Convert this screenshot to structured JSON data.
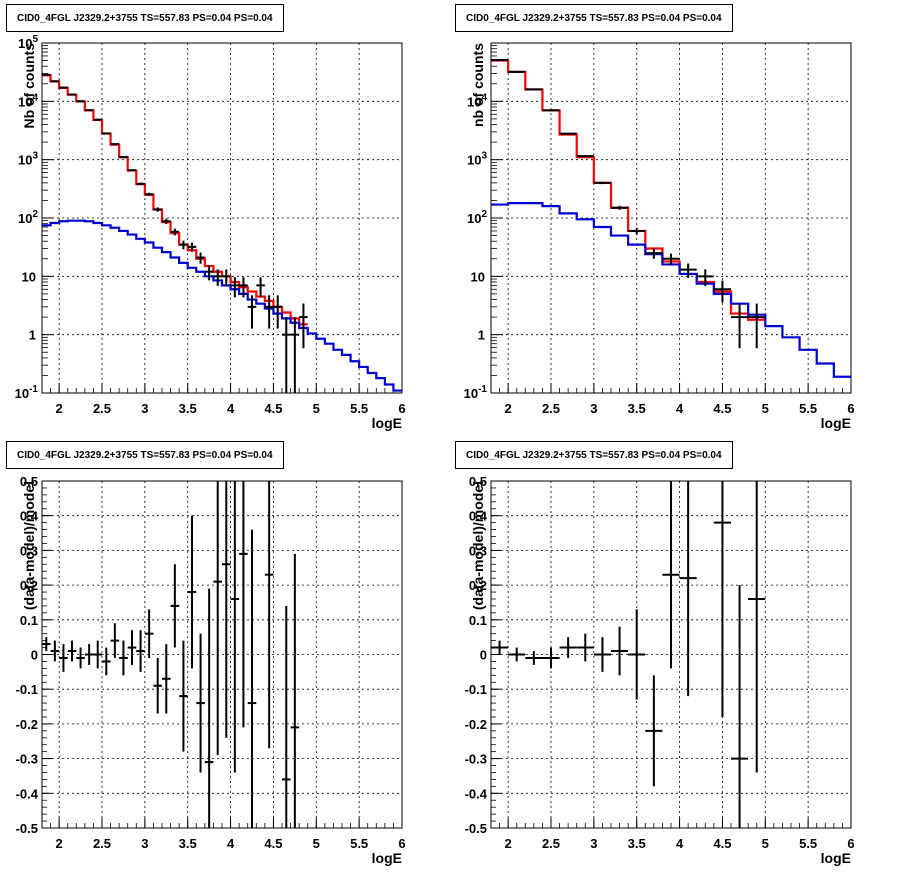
{
  "chart_data": [
    {
      "type": "histogram",
      "title": "CID0_4FGL J2329.2+3755 TS=557.83 PS=0.04 PS=0.04",
      "xlabel": "logE",
      "ylabel": "Nb of counts",
      "xlim": [
        1.8,
        6.0
      ],
      "ylim": [
        0.1,
        100000
      ],
      "yscale": "log",
      "grid": true,
      "x_ticks": [
        "2",
        "2.5",
        "3",
        "3.5",
        "4",
        "4.5",
        "5",
        "5.5",
        "6"
      ],
      "y_ticks": [
        "10^-1",
        "1",
        "10",
        "10^2",
        "10^3",
        "10^4",
        "10^5"
      ],
      "bin_width": 0.1,
      "series": [
        {
          "role": "model-total",
          "color": "#ff0000",
          "x": [
            1.8,
            1.9,
            2.0,
            2.1,
            2.2,
            2.3,
            2.4,
            2.5,
            2.6,
            2.7,
            2.8,
            2.9,
            3.0,
            3.1,
            3.2,
            3.3,
            3.4,
            3.5,
            3.6,
            3.7,
            3.8,
            3.9,
            4.0,
            4.1,
            4.2,
            4.3,
            4.4,
            4.5,
            4.6,
            4.7,
            4.8
          ],
          "values": [
            28000,
            22000,
            17000,
            13000,
            10000,
            7000,
            4800,
            2800,
            1800,
            1100,
            650,
            380,
            250,
            140,
            85,
            55,
            35,
            28,
            20,
            15,
            12,
            10,
            8,
            6.5,
            5.5,
            4.5,
            3.8,
            3.0,
            2.4,
            1.9,
            1.5
          ]
        },
        {
          "role": "background-model",
          "color": "#0000d0",
          "x": [
            1.8,
            1.9,
            2.0,
            2.1,
            2.2,
            2.3,
            2.4,
            2.5,
            2.6,
            2.7,
            2.8,
            2.9,
            3.0,
            3.1,
            3.2,
            3.3,
            3.4,
            3.5,
            3.6,
            3.7,
            3.8,
            3.9,
            4.0,
            4.1,
            4.2,
            4.3,
            4.4,
            4.5,
            4.6,
            4.7,
            4.8,
            4.9,
            5.0,
            5.1,
            5.2,
            5.3,
            5.4,
            5.5,
            5.6,
            5.7,
            5.8,
            5.9
          ],
          "values": [
            75,
            82,
            88,
            90,
            90,
            88,
            82,
            75,
            68,
            60,
            52,
            44,
            38,
            31,
            26,
            21,
            17,
            14,
            12,
            10,
            8.5,
            7,
            6,
            5,
            4,
            3.4,
            2.8,
            2.3,
            1.9,
            1.6,
            1.3,
            1.05,
            0.85,
            0.7,
            0.55,
            0.45,
            0.35,
            0.28,
            0.22,
            0.18,
            0.14,
            0.11
          ]
        },
        {
          "role": "data",
          "color": "#000000",
          "x": [
            1.85,
            1.95,
            2.05,
            2.15,
            2.25,
            2.35,
            2.45,
            2.55,
            2.65,
            2.75,
            2.85,
            2.95,
            3.05,
            3.15,
            3.25,
            3.35,
            3.45,
            3.55,
            3.65,
            3.75,
            3.85,
            3.95,
            4.05,
            4.15,
            4.25,
            4.35,
            4.45,
            4.55,
            4.65,
            4.75,
            4.85
          ],
          "values": [
            28500,
            22000,
            17200,
            13100,
            10000,
            7050,
            4850,
            2820,
            1850,
            1110,
            660,
            385,
            255,
            140,
            88,
            58,
            35,
            32,
            21,
            12,
            10,
            10,
            7,
            7,
            3,
            7,
            3,
            3,
            1,
            1,
            2
          ]
        }
      ]
    },
    {
      "type": "histogram",
      "title": "CID0_4FGL J2329.2+3755 TS=557.83 PS=0.04 PS=0.04",
      "xlabel": "logE",
      "ylabel": "nb of counts",
      "xlim": [
        1.8,
        6.0
      ],
      "ylim": [
        0.1,
        100000
      ],
      "yscale": "log",
      "grid": true,
      "x_ticks": [
        "2",
        "2.5",
        "3",
        "3.5",
        "4",
        "4.5",
        "5",
        "5.5",
        "6"
      ],
      "y_ticks": [
        "10^-1",
        "1",
        "10",
        "10^2",
        "10^3",
        "10^4"
      ],
      "bin_width": 0.2,
      "series": [
        {
          "role": "model-total",
          "color": "#ff0000",
          "x": [
            1.8,
            2.0,
            2.2,
            2.4,
            2.6,
            2.8,
            3.0,
            3.2,
            3.4,
            3.6,
            3.8,
            4.0,
            4.2,
            4.4,
            4.6,
            4.8
          ],
          "values": [
            50000,
            32000,
            16000,
            7000,
            2700,
            1100,
            400,
            150,
            60,
            30,
            18,
            11,
            8,
            5.5,
            2.3,
            1.8
          ]
        },
        {
          "role": "background-model",
          "color": "#0000d0",
          "x": [
            1.8,
            2.0,
            2.2,
            2.4,
            2.6,
            2.8,
            3.0,
            3.2,
            3.4,
            3.6,
            3.8,
            4.0,
            4.2,
            4.4,
            4.6,
            4.8,
            5.0,
            5.2,
            5.4,
            5.6,
            5.8
          ],
          "values": [
            170,
            180,
            180,
            160,
            120,
            95,
            70,
            50,
            35,
            24,
            16,
            11,
            7.5,
            5,
            3.4,
            2.2,
            1.4,
            0.9,
            0.55,
            0.32,
            0.19
          ]
        },
        {
          "role": "data",
          "color": "#000000",
          "x": [
            1.9,
            2.1,
            2.3,
            2.5,
            2.7,
            2.9,
            3.1,
            3.3,
            3.5,
            3.7,
            3.9,
            4.1,
            4.3,
            4.5,
            4.7,
            4.9
          ],
          "values": [
            51000,
            32000,
            16000,
            7000,
            2800,
            1150,
            400,
            150,
            60,
            25,
            20,
            13,
            10,
            6,
            2,
            2
          ]
        }
      ]
    },
    {
      "type": "scatter",
      "title": "CID0_4FGL J2329.2+3755 TS=557.83 PS=0.04 PS=0.04",
      "xlabel": "logE",
      "ylabel": "(data-model)/model",
      "xlim": [
        1.8,
        6.0
      ],
      "ylim": [
        -0.5,
        0.5
      ],
      "grid": true,
      "x_ticks": [
        "2",
        "2.5",
        "3",
        "3.5",
        "4",
        "4.5",
        "5",
        "5.5",
        "6"
      ],
      "y_ticks": [
        "-0.5",
        "-0.4",
        "-0.3",
        "-0.2",
        "-0.1",
        "0",
        "0.1",
        "0.2",
        "0.3",
        "0.4",
        "0.5"
      ],
      "x_halfwidth": 0.05,
      "x": [
        1.85,
        1.95,
        2.05,
        2.15,
        2.25,
        2.35,
        2.45,
        2.55,
        2.65,
        2.75,
        2.85,
        2.95,
        3.05,
        3.15,
        3.25,
        3.35,
        3.45,
        3.55,
        3.65,
        3.75,
        3.85,
        3.95,
        4.05,
        4.15,
        4.25,
        4.45,
        4.65,
        4.75
      ],
      "y": [
        0.03,
        0.01,
        -0.01,
        0.01,
        -0.01,
        0.0,
        0.0,
        -0.02,
        0.04,
        -0.01,
        0.02,
        0.01,
        0.06,
        -0.09,
        -0.07,
        0.14,
        -0.12,
        0.18,
        -0.14,
        -0.31,
        0.21,
        0.26,
        0.16,
        0.29,
        -0.14,
        0.23,
        -0.36,
        -0.21
      ],
      "err": [
        0.02,
        0.03,
        0.04,
        0.03,
        0.03,
        0.03,
        0.04,
        0.04,
        0.05,
        0.05,
        0.05,
        0.06,
        0.07,
        0.08,
        0.1,
        0.12,
        0.16,
        0.22,
        0.2,
        0.5,
        0.5,
        0.5,
        0.5,
        0.5,
        0.5,
        0.5,
        0.5,
        0.5
      ]
    },
    {
      "type": "scatter",
      "title": "CID0_4FGL J2329.2+3755 TS=557.83 PS=0.04 PS=0.04",
      "xlabel": "logE",
      "ylabel": "(data-model)/model",
      "xlim": [
        1.8,
        6.0
      ],
      "ylim": [
        -0.5,
        0.5
      ],
      "grid": true,
      "x_ticks": [
        "2",
        "2.5",
        "3",
        "3.5",
        "4",
        "4.5",
        "5",
        "5.5",
        "6"
      ],
      "y_ticks": [
        "-0.5",
        "-0.4",
        "-0.3",
        "-0.2",
        "-0.1",
        "0",
        "0.1",
        "0.2",
        "0.3",
        "0.4",
        "0.5"
      ],
      "x_halfwidth": 0.1,
      "x": [
        1.9,
        2.1,
        2.3,
        2.5,
        2.7,
        2.9,
        3.1,
        3.3,
        3.5,
        3.7,
        3.9,
        4.1,
        4.5,
        4.7,
        4.9
      ],
      "y": [
        0.02,
        0.0,
        -0.01,
        -0.01,
        0.02,
        0.02,
        0.0,
        0.01,
        0.0,
        -0.22,
        0.23,
        0.22,
        0.38,
        -0.3,
        0.16
      ],
      "err": [
        0.02,
        0.02,
        0.02,
        0.03,
        0.03,
        0.04,
        0.05,
        0.07,
        0.13,
        0.16,
        0.27,
        0.34,
        0.56,
        0.5,
        0.5
      ]
    }
  ]
}
